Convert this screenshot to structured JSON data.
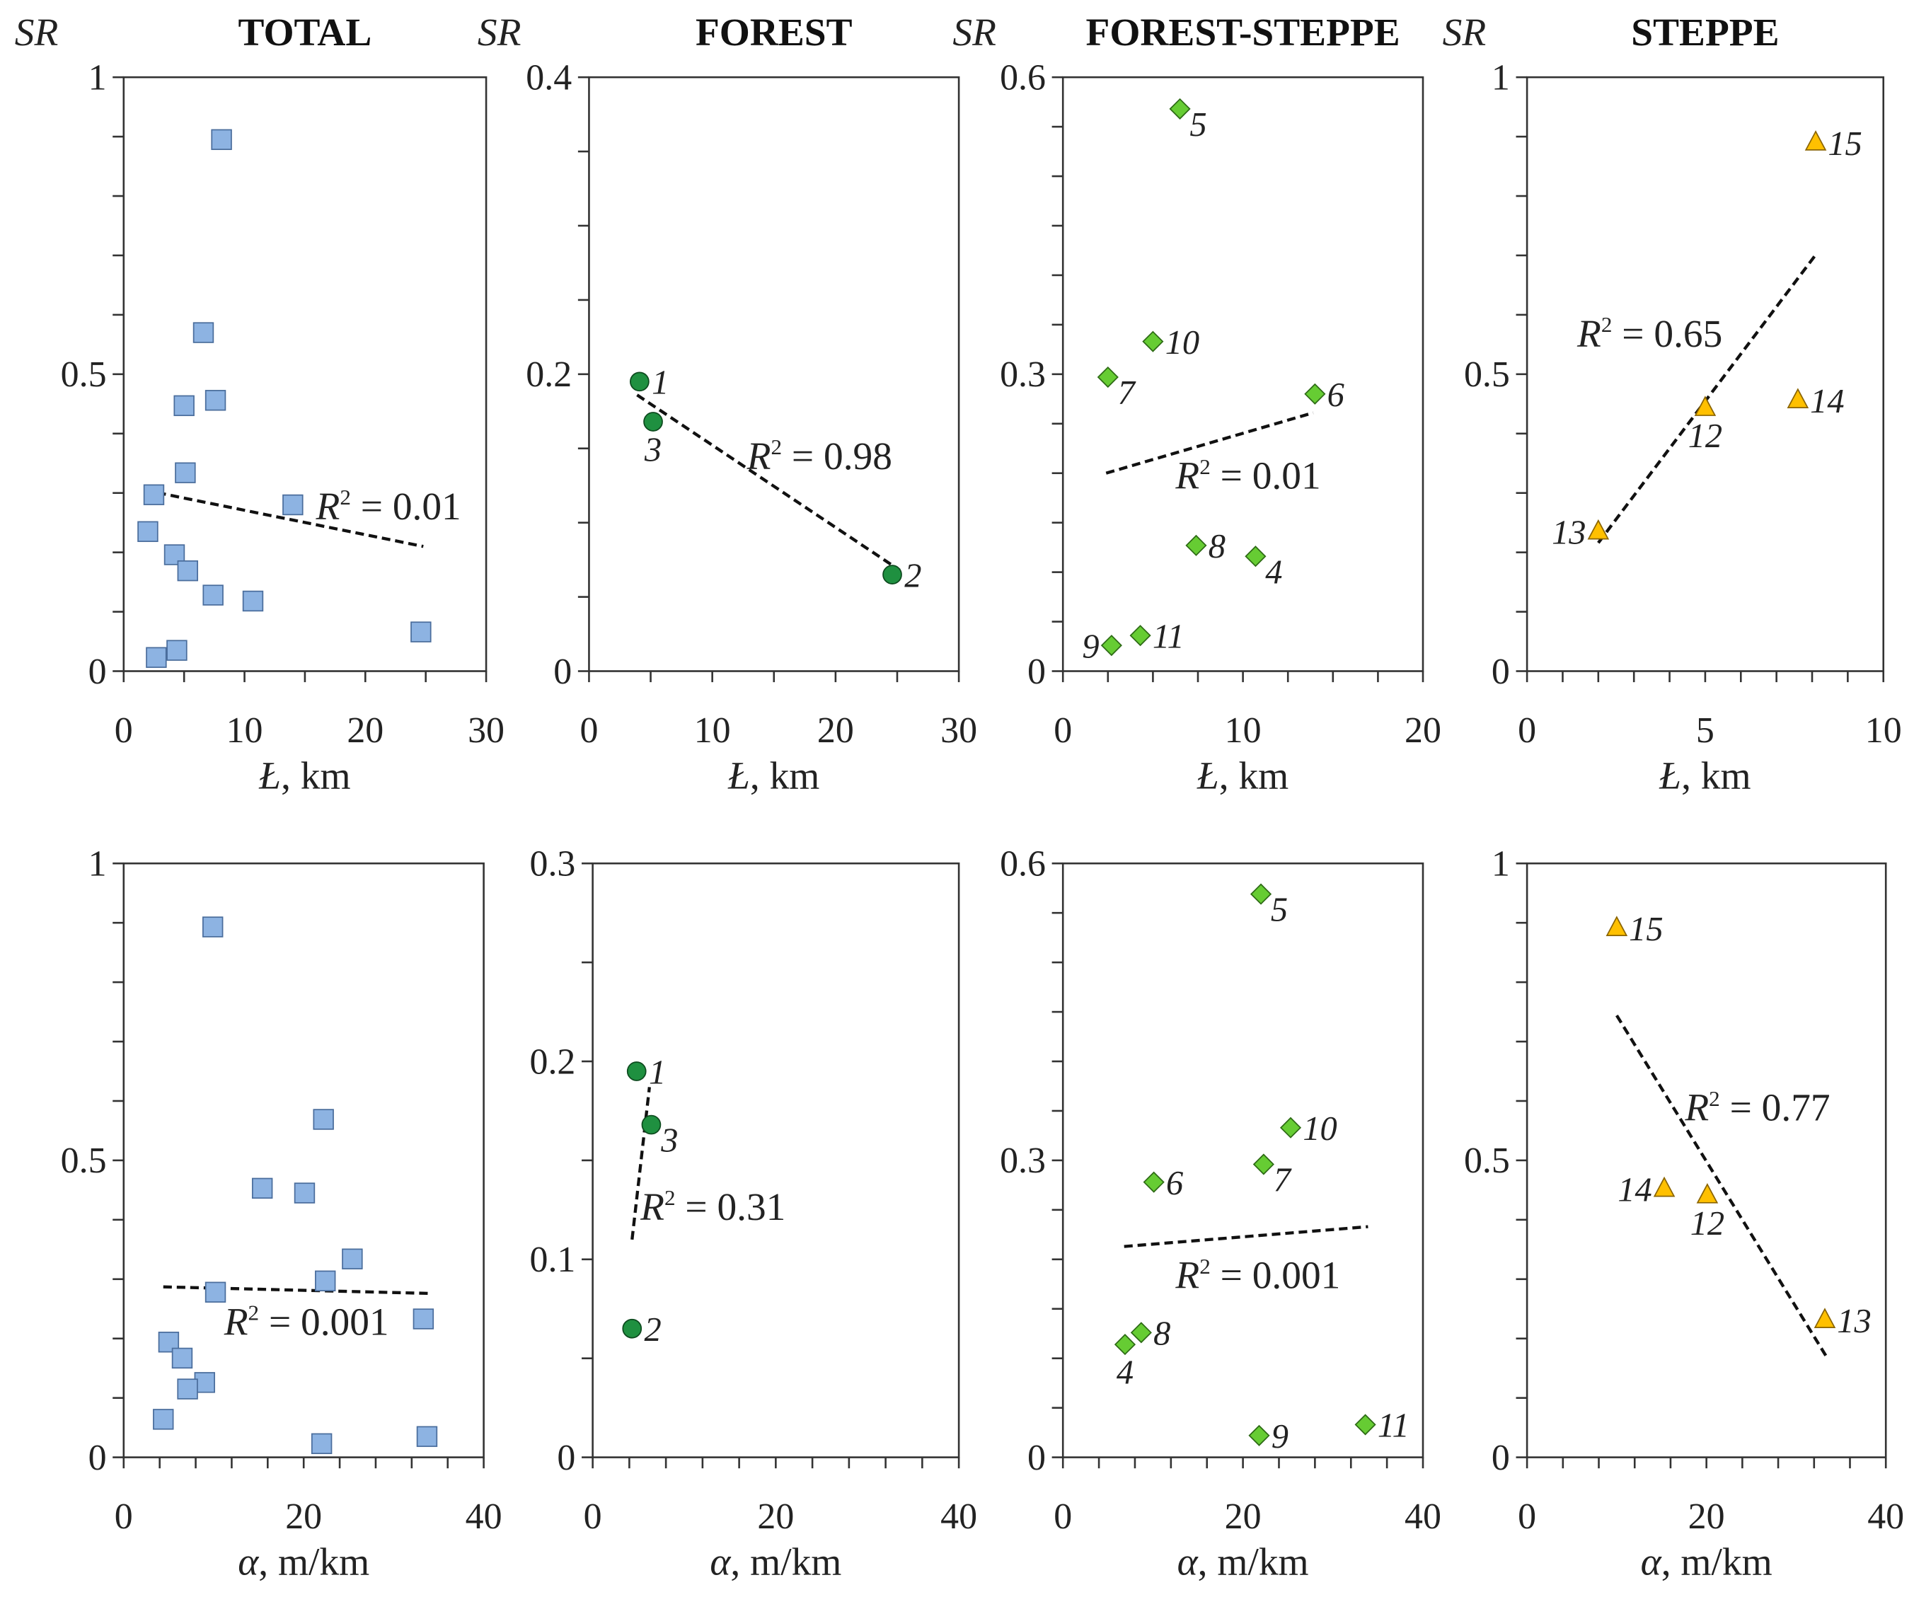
{
  "colors": {
    "total": "#8db3e2",
    "total_stroke": "#4a6d9c",
    "forest": "#1f9040",
    "forest_stroke": "#0d4a1e",
    "forest_steppe": "#66cc33",
    "forest_steppe_stroke": "#2d6a15",
    "steppe": "#ffc000",
    "steppe_stroke": "#8a6400",
    "axis": "#333333",
    "trend": "#111111"
  },
  "chart_data": [
    {
      "type": "scatter",
      "title": "TOTAL",
      "ylabel": "SR",
      "xlabel_symbol": "Ł",
      "xlabel_unit": ", km",
      "marker": "square",
      "color_key": "total",
      "xlim": [
        0,
        30
      ],
      "ylim": [
        0,
        1
      ],
      "xticks": [
        0,
        10,
        20,
        30
      ],
      "yticks": [
        "0",
        "0.5",
        "1"
      ],
      "ytick_values": [
        0,
        0.5,
        1
      ],
      "x_minor_step": 5,
      "y_minor_step": 0.1,
      "r2_value": "0.01",
      "trendline": {
        "x": [
          1.7,
          24.8
        ],
        "y": [
          0.305,
          0.21
        ]
      },
      "points": [
        {
          "x": 8.1,
          "y": 0.895
        },
        {
          "x": 6.6,
          "y": 0.57
        },
        {
          "x": 5.0,
          "y": 0.447
        },
        {
          "x": 7.6,
          "y": 0.456
        },
        {
          "x": 5.1,
          "y": 0.334
        },
        {
          "x": 2.5,
          "y": 0.297
        },
        {
          "x": 14.0,
          "y": 0.28
        },
        {
          "x": 2.0,
          "y": 0.235
        },
        {
          "x": 4.2,
          "y": 0.196
        },
        {
          "x": 5.3,
          "y": 0.169
        },
        {
          "x": 7.4,
          "y": 0.128
        },
        {
          "x": 10.7,
          "y": 0.118
        },
        {
          "x": 24.6,
          "y": 0.066
        },
        {
          "x": 2.7,
          "y": 0.023
        },
        {
          "x": 4.4,
          "y": 0.035
        }
      ]
    },
    {
      "type": "scatter",
      "title": "FOREST",
      "ylabel": "SR",
      "xlabel_symbol": "Ł",
      "xlabel_unit": ", km",
      "marker": "circle",
      "color_key": "forest",
      "xlim": [
        0,
        30
      ],
      "ylim": [
        0,
        0.4
      ],
      "xticks": [
        0,
        10,
        20,
        30
      ],
      "yticks": [
        "0",
        "0.2",
        "0.4"
      ],
      "ytick_values": [
        0,
        0.2,
        0.4
      ],
      "x_minor_step": 5,
      "y_minor_step": 0.05,
      "r2_value": "0.98",
      "trendline": {
        "x": [
          3.9,
          25.2
        ],
        "y": [
          0.186,
          0.068
        ]
      },
      "points": [
        {
          "label": "1",
          "x": 4.1,
          "y": 0.195,
          "label_pos": "right"
        },
        {
          "label": "3",
          "x": 5.2,
          "y": 0.168,
          "label_pos": "below"
        },
        {
          "label": "2",
          "x": 24.6,
          "y": 0.065,
          "label_pos": "right"
        }
      ]
    },
    {
      "type": "scatter",
      "title": "FOREST-STEPPE",
      "ylabel": "SR",
      "xlabel_symbol": "Ł",
      "xlabel_unit": ", km",
      "marker": "diamond",
      "color_key": "forest_steppe",
      "xlim": [
        0,
        20
      ],
      "ylim": [
        0,
        0.6
      ],
      "xticks": [
        0,
        10,
        20
      ],
      "yticks": [
        "0",
        "0.3",
        "0.6"
      ],
      "ytick_values": [
        0,
        0.3,
        0.6
      ],
      "x_minor_step": 2.5,
      "y_minor_step": 0.05,
      "r2_value": "0.01",
      "trendline": {
        "x": [
          2.4,
          13.9
        ],
        "y": [
          0.2,
          0.261
        ]
      },
      "points": [
        {
          "label": "5",
          "x": 6.5,
          "y": 0.568,
          "label_pos": "below-right"
        },
        {
          "label": "10",
          "x": 5.0,
          "y": 0.333,
          "label_pos": "right"
        },
        {
          "label": "7",
          "x": 2.5,
          "y": 0.297,
          "label_pos": "below-right"
        },
        {
          "label": "6",
          "x": 14.0,
          "y": 0.28,
          "label_pos": "right"
        },
        {
          "label": "8",
          "x": 7.4,
          "y": 0.127,
          "label_pos": "right"
        },
        {
          "label": "4",
          "x": 10.7,
          "y": 0.116,
          "label_pos": "below-right"
        },
        {
          "label": "9",
          "x": 2.7,
          "y": 0.026,
          "label_pos": "left"
        },
        {
          "label": "11",
          "x": 4.3,
          "y": 0.036,
          "label_pos": "right"
        }
      ]
    },
    {
      "type": "scatter",
      "title": "STEPPE",
      "ylabel": "SR",
      "xlabel_symbol": "Ł",
      "xlabel_unit": ", km",
      "marker": "triangle",
      "color_key": "steppe",
      "xlim": [
        0,
        10
      ],
      "ylim": [
        0,
        1
      ],
      "xticks": [
        0,
        5,
        10
      ],
      "yticks": [
        "0",
        "0.5",
        "1"
      ],
      "ytick_values": [
        0,
        0.5,
        1
      ],
      "x_minor_step": 1,
      "y_minor_step": 0.1,
      "r2_value": "0.65",
      "trendline": {
        "x": [
          2.0,
          8.1
        ],
        "y": [
          0.216,
          0.701
        ]
      },
      "points": [
        {
          "label": "15",
          "x": 8.1,
          "y": 0.89,
          "label_pos": "right"
        },
        {
          "label": "12",
          "x": 5.0,
          "y": 0.443,
          "label_pos": "below"
        },
        {
          "label": "14",
          "x": 7.6,
          "y": 0.456,
          "label_pos": "right"
        },
        {
          "label": "13",
          "x": 2.0,
          "y": 0.235,
          "label_pos": "left"
        }
      ]
    },
    {
      "type": "scatter",
      "title": "",
      "ylabel": "",
      "xlabel_symbol": "α",
      "xlabel_unit": ", m/km",
      "marker": "square",
      "color_key": "total",
      "xlim": [
        0,
        40
      ],
      "ylim": [
        0,
        1
      ],
      "xticks": [
        0,
        20,
        40
      ],
      "yticks": [
        "0",
        "0.5",
        "1"
      ],
      "ytick_values": [
        0,
        0.5,
        1
      ],
      "x_minor_step": 4,
      "y_minor_step": 0.1,
      "r2_value": "0.001",
      "trendline": {
        "x": [
          4.4,
          33.9
        ],
        "y": [
          0.287,
          0.276
        ]
      },
      "points": [
        {
          "x": 9.9,
          "y": 0.893
        },
        {
          "x": 22.2,
          "y": 0.569
        },
        {
          "x": 15.4,
          "y": 0.453
        },
        {
          "x": 20.1,
          "y": 0.445
        },
        {
          "x": 25.4,
          "y": 0.334
        },
        {
          "x": 22.4,
          "y": 0.297
        },
        {
          "x": 10.2,
          "y": 0.278
        },
        {
          "x": 33.3,
          "y": 0.233
        },
        {
          "x": 5.0,
          "y": 0.194
        },
        {
          "x": 6.5,
          "y": 0.167
        },
        {
          "x": 9.0,
          "y": 0.126
        },
        {
          "x": 7.1,
          "y": 0.115
        },
        {
          "x": 4.4,
          "y": 0.064
        },
        {
          "x": 22.0,
          "y": 0.023
        },
        {
          "x": 33.7,
          "y": 0.035
        }
      ]
    },
    {
      "type": "scatter",
      "title": "",
      "ylabel": "",
      "xlabel_symbol": "α",
      "xlabel_unit": ", m/km",
      "marker": "circle",
      "color_key": "forest",
      "xlim": [
        0,
        40
      ],
      "ylim": [
        0,
        0.3
      ],
      "xticks": [
        0,
        20,
        40
      ],
      "yticks": [
        "0",
        "0.1",
        "0.2",
        "0.3"
      ],
      "ytick_values": [
        0,
        0.1,
        0.2,
        0.3
      ],
      "x_minor_step": 4,
      "y_minor_step": 0.05,
      "r2_value": "0.31",
      "trendline": {
        "x": [
          4.3,
          6.2
        ],
        "y": [
          0.11,
          0.187
        ]
      },
      "points": [
        {
          "label": "1",
          "x": 4.8,
          "y": 0.195,
          "label_pos": "right"
        },
        {
          "label": "3",
          "x": 6.4,
          "y": 0.168,
          "label_pos": "below-right"
        },
        {
          "label": "2",
          "x": 4.3,
          "y": 0.065,
          "label_pos": "right"
        }
      ]
    },
    {
      "type": "scatter",
      "title": "",
      "ylabel": "",
      "xlabel_symbol": "α",
      "xlabel_unit": ", m/km",
      "marker": "diamond",
      "color_key": "forest_steppe",
      "xlim": [
        0,
        40
      ],
      "ylim": [
        0,
        0.6
      ],
      "xticks": [
        0,
        20,
        40
      ],
      "yticks": [
        "0",
        "0.3",
        "0.6"
      ],
      "ytick_values": [
        0,
        0.3,
        0.6
      ],
      "x_minor_step": 4,
      "y_minor_step": 0.05,
      "r2_value": "0.001",
      "trendline": {
        "x": [
          6.8,
          33.9
        ],
        "y": [
          0.213,
          0.233
        ]
      },
      "points": [
        {
          "label": "5",
          "x": 22.0,
          "y": 0.569,
          "label_pos": "below-right"
        },
        {
          "label": "10",
          "x": 25.3,
          "y": 0.333,
          "label_pos": "right"
        },
        {
          "label": "7",
          "x": 22.3,
          "y": 0.296,
          "label_pos": "below-right"
        },
        {
          "label": "6",
          "x": 10.1,
          "y": 0.278,
          "label_pos": "right"
        },
        {
          "label": "8",
          "x": 8.7,
          "y": 0.126,
          "label_pos": "right"
        },
        {
          "label": "4",
          "x": 6.9,
          "y": 0.114,
          "label_pos": "below"
        },
        {
          "label": "9",
          "x": 21.8,
          "y": 0.022,
          "label_pos": "right"
        },
        {
          "label": "11",
          "x": 33.6,
          "y": 0.033,
          "label_pos": "right"
        }
      ]
    },
    {
      "type": "scatter",
      "title": "",
      "ylabel": "",
      "xlabel_symbol": "α",
      "xlabel_unit": ", m/km",
      "marker": "triangle",
      "color_key": "steppe",
      "xlim": [
        0,
        40
      ],
      "ylim": [
        0,
        1
      ],
      "xticks": [
        0,
        20,
        40
      ],
      "yticks": [
        "0",
        "0.5",
        "1"
      ],
      "ytick_values": [
        0,
        0.5,
        1
      ],
      "x_minor_step": 4,
      "y_minor_step": 0.1,
      "r2_value": "0.77",
      "trendline": {
        "x": [
          10.0,
          33.4
        ],
        "y": [
          0.744,
          0.169
        ]
      },
      "points": [
        {
          "label": "15",
          "x": 10.0,
          "y": 0.891,
          "label_pos": "right"
        },
        {
          "label": "14",
          "x": 15.3,
          "y": 0.452,
          "label_pos": "left"
        },
        {
          "label": "12",
          "x": 20.1,
          "y": 0.441,
          "label_pos": "below"
        },
        {
          "label": "13",
          "x": 33.2,
          "y": 0.231,
          "label_pos": "right"
        }
      ]
    }
  ]
}
